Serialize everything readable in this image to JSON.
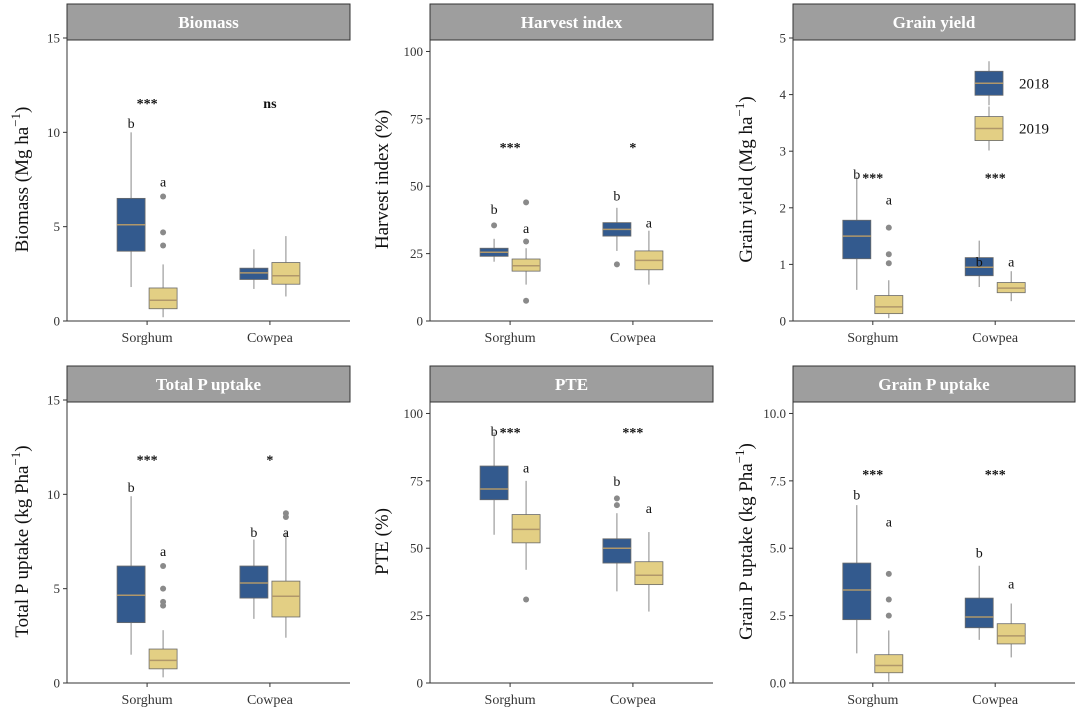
{
  "colors": {
    "y2018": "#335a8e",
    "y2019": "#e3cf84",
    "strip": "#9e9e9e"
  },
  "legend": {
    "items": [
      {
        "label": "2018",
        "color": "#335a8e"
      },
      {
        "label": "2019",
        "color": "#e3cf84"
      }
    ]
  },
  "chart_data": [
    {
      "type": "box",
      "title": "Biomass",
      "ylabel": "Biomass (Mg ha$)",
      "ylabel_sup": "−1",
      "ylim": [
        0,
        15
      ],
      "yticks": [
        0,
        5,
        10,
        15
      ],
      "ytick_labels": [
        "0",
        "5",
        "10",
        "15"
      ],
      "categories": [
        "Sorghum",
        "Cowpea"
      ],
      "series": [
        {
          "name": "2018",
          "boxes": [
            {
              "min": 1.8,
              "q1": 3.7,
              "median": 5.1,
              "q3": 6.5,
              "max": 10.0,
              "outliers": []
            },
            {
              "min": 1.7,
              "q1": 2.2,
              "median": 2.55,
              "q3": 2.8,
              "max": 3.8,
              "outliers": []
            }
          ]
        },
        {
          "name": "2019",
          "boxes": [
            {
              "min": 0.2,
              "q1": 0.65,
              "median": 1.1,
              "q3": 1.75,
              "max": 3.0,
              "outliers": [
                4.0,
                4.7,
                6.6
              ]
            },
            {
              "min": 1.3,
              "q1": 1.95,
              "median": 2.4,
              "q3": 3.1,
              "max": 4.5,
              "outliers": []
            }
          ]
        }
      ],
      "letters": [
        {
          "cat": 0,
          "series": 0,
          "text": "b",
          "y": 10.5
        },
        {
          "cat": 0,
          "series": 1,
          "text": "a",
          "y": 7.4
        }
      ],
      "significance": [
        {
          "cat": 0,
          "text": "***",
          "y": 11.6
        },
        {
          "cat": 1,
          "text": "ns",
          "y": 11.6
        }
      ]
    },
    {
      "type": "box",
      "title": "Harvest index",
      "ylabel": "Harvest index (%)",
      "ylim": [
        0,
        105
      ],
      "yticks": [
        0,
        25,
        50,
        75,
        100
      ],
      "ytick_labels": [
        "0",
        "25",
        "50",
        "75",
        "100"
      ],
      "categories": [
        "Sorghum",
        "Cowpea"
      ],
      "series": [
        {
          "name": "2018",
          "boxes": [
            {
              "min": 22.0,
              "q1": 24.0,
              "median": 25.5,
              "q3": 27.0,
              "max": 30.5,
              "outliers": [
                35.5
              ]
            },
            {
              "min": 26.0,
              "q1": 31.5,
              "median": 34.0,
              "q3": 36.5,
              "max": 42.0,
              "outliers": [
                21.0
              ]
            }
          ]
        },
        {
          "name": "2019",
          "boxes": [
            {
              "min": 13.5,
              "q1": 18.5,
              "median": 20.5,
              "q3": 23.0,
              "max": 27.0,
              "outliers": [
                7.5,
                29.5,
                44.0
              ]
            },
            {
              "min": 13.5,
              "q1": 19.0,
              "median": 22.5,
              "q3": 26.0,
              "max": 33.5,
              "outliers": []
            }
          ]
        }
      ],
      "letters": [
        {
          "cat": 0,
          "series": 0,
          "text": "b",
          "y": 41.5
        },
        {
          "cat": 0,
          "series": 1,
          "text": "a",
          "y": 34.5
        },
        {
          "cat": 1,
          "series": 0,
          "text": "b",
          "y": 46.5
        },
        {
          "cat": 1,
          "series": 1,
          "text": "a",
          "y": 36.5
        }
      ],
      "significance": [
        {
          "cat": 0,
          "text": "***",
          "y": 65.0
        },
        {
          "cat": 1,
          "text": "*",
          "y": 65.0
        }
      ]
    },
    {
      "type": "box",
      "title": "Grain yield",
      "ylabel": "Grain yield (Mg ha$)",
      "ylabel_sup": "−1",
      "ylim": [
        0,
        5
      ],
      "yticks": [
        0,
        1,
        2,
        3,
        4,
        5
      ],
      "ytick_labels": [
        "0",
        "1",
        "2",
        "3",
        "4",
        "5"
      ],
      "categories": [
        "Sorghum",
        "Cowpea"
      ],
      "series": [
        {
          "name": "2018",
          "boxes": [
            {
              "min": 0.55,
              "q1": 1.1,
              "median": 1.5,
              "q3": 1.78,
              "max": 2.55,
              "outliers": []
            },
            {
              "min": 0.6,
              "q1": 0.8,
              "median": 0.95,
              "q3": 1.12,
              "max": 1.42,
              "outliers": []
            }
          ]
        },
        {
          "name": "2019",
          "boxes": [
            {
              "min": 0.05,
              "q1": 0.13,
              "median": 0.25,
              "q3": 0.45,
              "max": 0.72,
              "outliers": [
                1.02,
                1.18,
                1.65
              ]
            },
            {
              "min": 0.35,
              "q1": 0.5,
              "median": 0.58,
              "q3": 0.68,
              "max": 0.88,
              "outliers": []
            }
          ]
        }
      ],
      "letters": [
        {
          "cat": 0,
          "series": 0,
          "text": "b",
          "y": 2.6
        },
        {
          "cat": 0,
          "series": 1,
          "text": "a",
          "y": 2.15
        },
        {
          "cat": 1,
          "series": 0,
          "text": "b",
          "y": 1.05
        },
        {
          "cat": 1,
          "series": 1,
          "text": "a",
          "y": 1.05
        }
      ],
      "significance": [
        {
          "cat": 0,
          "text": "***",
          "y": 2.55
        },
        {
          "cat": 1,
          "text": "***",
          "y": 2.55
        }
      ],
      "legend_position": "top-right"
    },
    {
      "type": "box",
      "title": "Total P uptake",
      "ylabel": "Total P uptake (kg Pha$)",
      "ylabel_sup": "−1",
      "ylim": [
        0,
        15
      ],
      "yticks": [
        0,
        5,
        10,
        15
      ],
      "ytick_labels": [
        "0",
        "5",
        "10",
        "15"
      ],
      "categories": [
        "Sorghum",
        "Cowpea"
      ],
      "series": [
        {
          "name": "2018",
          "boxes": [
            {
              "min": 1.5,
              "q1": 3.2,
              "median": 4.65,
              "q3": 6.2,
              "max": 9.9,
              "outliers": []
            },
            {
              "min": 3.4,
              "q1": 4.5,
              "median": 5.3,
              "q3": 6.2,
              "max": 7.6,
              "outliers": []
            }
          ]
        },
        {
          "name": "2019",
          "boxes": [
            {
              "min": 0.3,
              "q1": 0.75,
              "median": 1.2,
              "q3": 1.8,
              "max": 2.8,
              "outliers": [
                4.1,
                4.3,
                5.0,
                6.2
              ]
            },
            {
              "min": 2.4,
              "q1": 3.5,
              "median": 4.6,
              "q3": 5.4,
              "max": 8.0,
              "outliers": [
                8.8,
                9.0
              ]
            }
          ]
        }
      ],
      "letters": [
        {
          "cat": 0,
          "series": 0,
          "text": "b",
          "y": 10.4
        },
        {
          "cat": 0,
          "series": 1,
          "text": "a",
          "y": 7.0
        },
        {
          "cat": 1,
          "series": 0,
          "text": "b",
          "y": 8.0
        },
        {
          "cat": 1,
          "series": 1,
          "text": "a",
          "y": 8.0
        }
      ],
      "significance": [
        {
          "cat": 0,
          "text": "***",
          "y": 11.9
        },
        {
          "cat": 1,
          "text": "*",
          "y": 11.9
        }
      ]
    },
    {
      "type": "box",
      "title": "PTE",
      "ylabel": "PTE (%)",
      "ylim": [
        0,
        105
      ],
      "yticks": [
        0,
        25,
        50,
        75,
        100
      ],
      "ytick_labels": [
        "0",
        "25",
        "50",
        "75",
        "100"
      ],
      "categories": [
        "Sorghum",
        "Cowpea"
      ],
      "series": [
        {
          "name": "2018",
          "boxes": [
            {
              "min": 55.0,
              "q1": 68.0,
              "median": 72.0,
              "q3": 80.5,
              "max": 93.0,
              "outliers": []
            },
            {
              "min": 34.0,
              "q1": 44.5,
              "median": 50.0,
              "q3": 53.5,
              "max": 63.0,
              "outliers": [
                66.0,
                68.5
              ]
            }
          ]
        },
        {
          "name": "2019",
          "boxes": [
            {
              "min": 42.0,
              "q1": 52.0,
              "median": 57.0,
              "q3": 62.5,
              "max": 75.0,
              "outliers": [
                31.0
              ]
            },
            {
              "min": 26.5,
              "q1": 36.5,
              "median": 40.0,
              "q3": 45.0,
              "max": 56.0,
              "outliers": []
            }
          ]
        }
      ],
      "letters": [
        {
          "cat": 0,
          "series": 0,
          "text": "b",
          "y": 93.5
        },
        {
          "cat": 0,
          "series": 1,
          "text": "a",
          "y": 80.0
        },
        {
          "cat": 1,
          "series": 0,
          "text": "b",
          "y": 75.0
        },
        {
          "cat": 1,
          "series": 1,
          "text": "a",
          "y": 65.0
        }
      ],
      "significance": [
        {
          "cat": 0,
          "text": "***",
          "y": 93.5
        },
        {
          "cat": 1,
          "text": "***",
          "y": 93.5
        }
      ]
    },
    {
      "type": "box",
      "title": "Grain P uptake",
      "ylabel": "Grain P uptake (kg Pha$)",
      "ylabel_sup": "−1",
      "ylim": [
        0,
        10.5
      ],
      "yticks": [
        0,
        2.5,
        5,
        7.5,
        10
      ],
      "ytick_labels": [
        "0.0",
        "2.5",
        "5.0",
        "7.5",
        "10.0"
      ],
      "categories": [
        "Sorghum",
        "Cowpea"
      ],
      "series": [
        {
          "name": "2018",
          "boxes": [
            {
              "min": 1.1,
              "q1": 2.35,
              "median": 3.45,
              "q3": 4.45,
              "max": 6.6,
              "outliers": []
            },
            {
              "min": 1.6,
              "q1": 2.05,
              "median": 2.45,
              "q3": 3.15,
              "max": 4.35,
              "outliers": []
            }
          ]
        },
        {
          "name": "2019",
          "boxes": [
            {
              "min": 0.05,
              "q1": 0.38,
              "median": 0.65,
              "q3": 1.05,
              "max": 1.95,
              "outliers": [
                2.5,
                3.1,
                4.05
              ]
            },
            {
              "min": 0.95,
              "q1": 1.45,
              "median": 1.75,
              "q3": 2.2,
              "max": 2.95,
              "outliers": []
            }
          ]
        }
      ],
      "letters": [
        {
          "cat": 0,
          "series": 0,
          "text": "b",
          "y": 7.0
        },
        {
          "cat": 0,
          "series": 1,
          "text": "a",
          "y": 6.0
        },
        {
          "cat": 1,
          "series": 0,
          "text": "b",
          "y": 4.85
        },
        {
          "cat": 1,
          "series": 1,
          "text": "a",
          "y": 3.7
        }
      ],
      "significance": [
        {
          "cat": 0,
          "text": "***",
          "y": 7.8
        },
        {
          "cat": 1,
          "text": "***",
          "y": 7.8
        }
      ]
    }
  ]
}
